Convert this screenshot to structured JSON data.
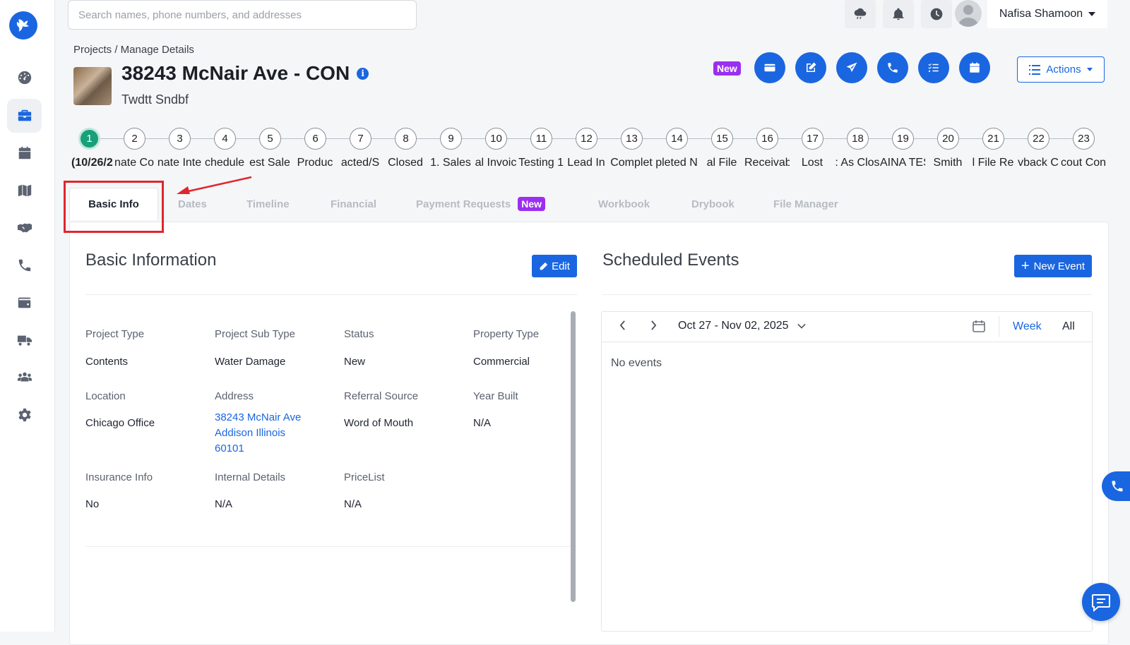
{
  "search": {
    "placeholder": "Search names, phone numbers, and addresses"
  },
  "user": {
    "name": "Nafisa Shamoon"
  },
  "breadcrumb": "Projects / Manage Details",
  "project": {
    "title": "38243 McNair Ave - CON",
    "subtitle": "Twdtt Sndbf",
    "new_badge": "New"
  },
  "actions": {
    "label": "Actions"
  },
  "stepper": [
    {
      "num": "1",
      "label": "(10/26/2"
    },
    {
      "num": "2",
      "label": "nate Co"
    },
    {
      "num": "3",
      "label": "nate Inte"
    },
    {
      "num": "4",
      "label": "chedule"
    },
    {
      "num": "5",
      "label": "est Sale"
    },
    {
      "num": "6",
      "label": "Produc"
    },
    {
      "num": "7",
      "label": "acted/S"
    },
    {
      "num": "8",
      "label": "Closed"
    },
    {
      "num": "9",
      "label": "1. Sales"
    },
    {
      "num": "10",
      "label": "al Invoic"
    },
    {
      "num": "11",
      "label": "Testing 1"
    },
    {
      "num": "12",
      "label": "Lead In"
    },
    {
      "num": "13",
      "label": "Complet"
    },
    {
      "num": "14",
      "label": "pleted N"
    },
    {
      "num": "15",
      "label": "al File"
    },
    {
      "num": "16",
      "label": "Receivabl"
    },
    {
      "num": "17",
      "label": "Lost"
    },
    {
      "num": "18",
      "label": ": As Clos"
    },
    {
      "num": "19",
      "label": "AINA TES"
    },
    {
      "num": "20",
      "label": "Smith"
    },
    {
      "num": "21",
      "label": "l File Re"
    },
    {
      "num": "22",
      "label": "vback C"
    },
    {
      "num": "23",
      "label": "cout Con"
    }
  ],
  "tabs": {
    "basic_info": "Basic Info",
    "dates": "Dates",
    "timeline": "Timeline",
    "financial": "Financial",
    "payment_requests": "Payment Requests",
    "payment_requests_badge": "New",
    "workbook": "Workbook",
    "drybook": "Drybook",
    "file_manager": "File Manager"
  },
  "basic_information": {
    "title": "Basic Information",
    "edit_label": "Edit",
    "fields": {
      "project_type": {
        "label": "Project Type",
        "value": "Contents"
      },
      "project_sub_type": {
        "label": "Project Sub Type",
        "value": "Water Damage"
      },
      "status": {
        "label": "Status",
        "value": "New"
      },
      "property_type": {
        "label": "Property Type",
        "value": "Commercial"
      },
      "location": {
        "label": "Location",
        "value": "Chicago Office"
      },
      "address": {
        "label": "Address",
        "line1": "38243 McNair Ave",
        "line2": "Addison Illinois",
        "line3": "60101"
      },
      "referral_source": {
        "label": "Referral Source",
        "value": "Word of Mouth"
      },
      "year_built": {
        "label": "Year Built",
        "value": "N/A"
      },
      "insurance_info": {
        "label": "Insurance Info",
        "value": "No"
      },
      "internal_details": {
        "label": "Internal Details",
        "value": "N/A"
      },
      "pricelist": {
        "label": "PriceList",
        "value": "N/A"
      }
    }
  },
  "scheduled_events": {
    "title": "Scheduled Events",
    "new_event_label": "New Event",
    "range": "Oct 27 - Nov 02, 2025",
    "view_week": "Week",
    "view_all": "All",
    "empty": "No events"
  }
}
